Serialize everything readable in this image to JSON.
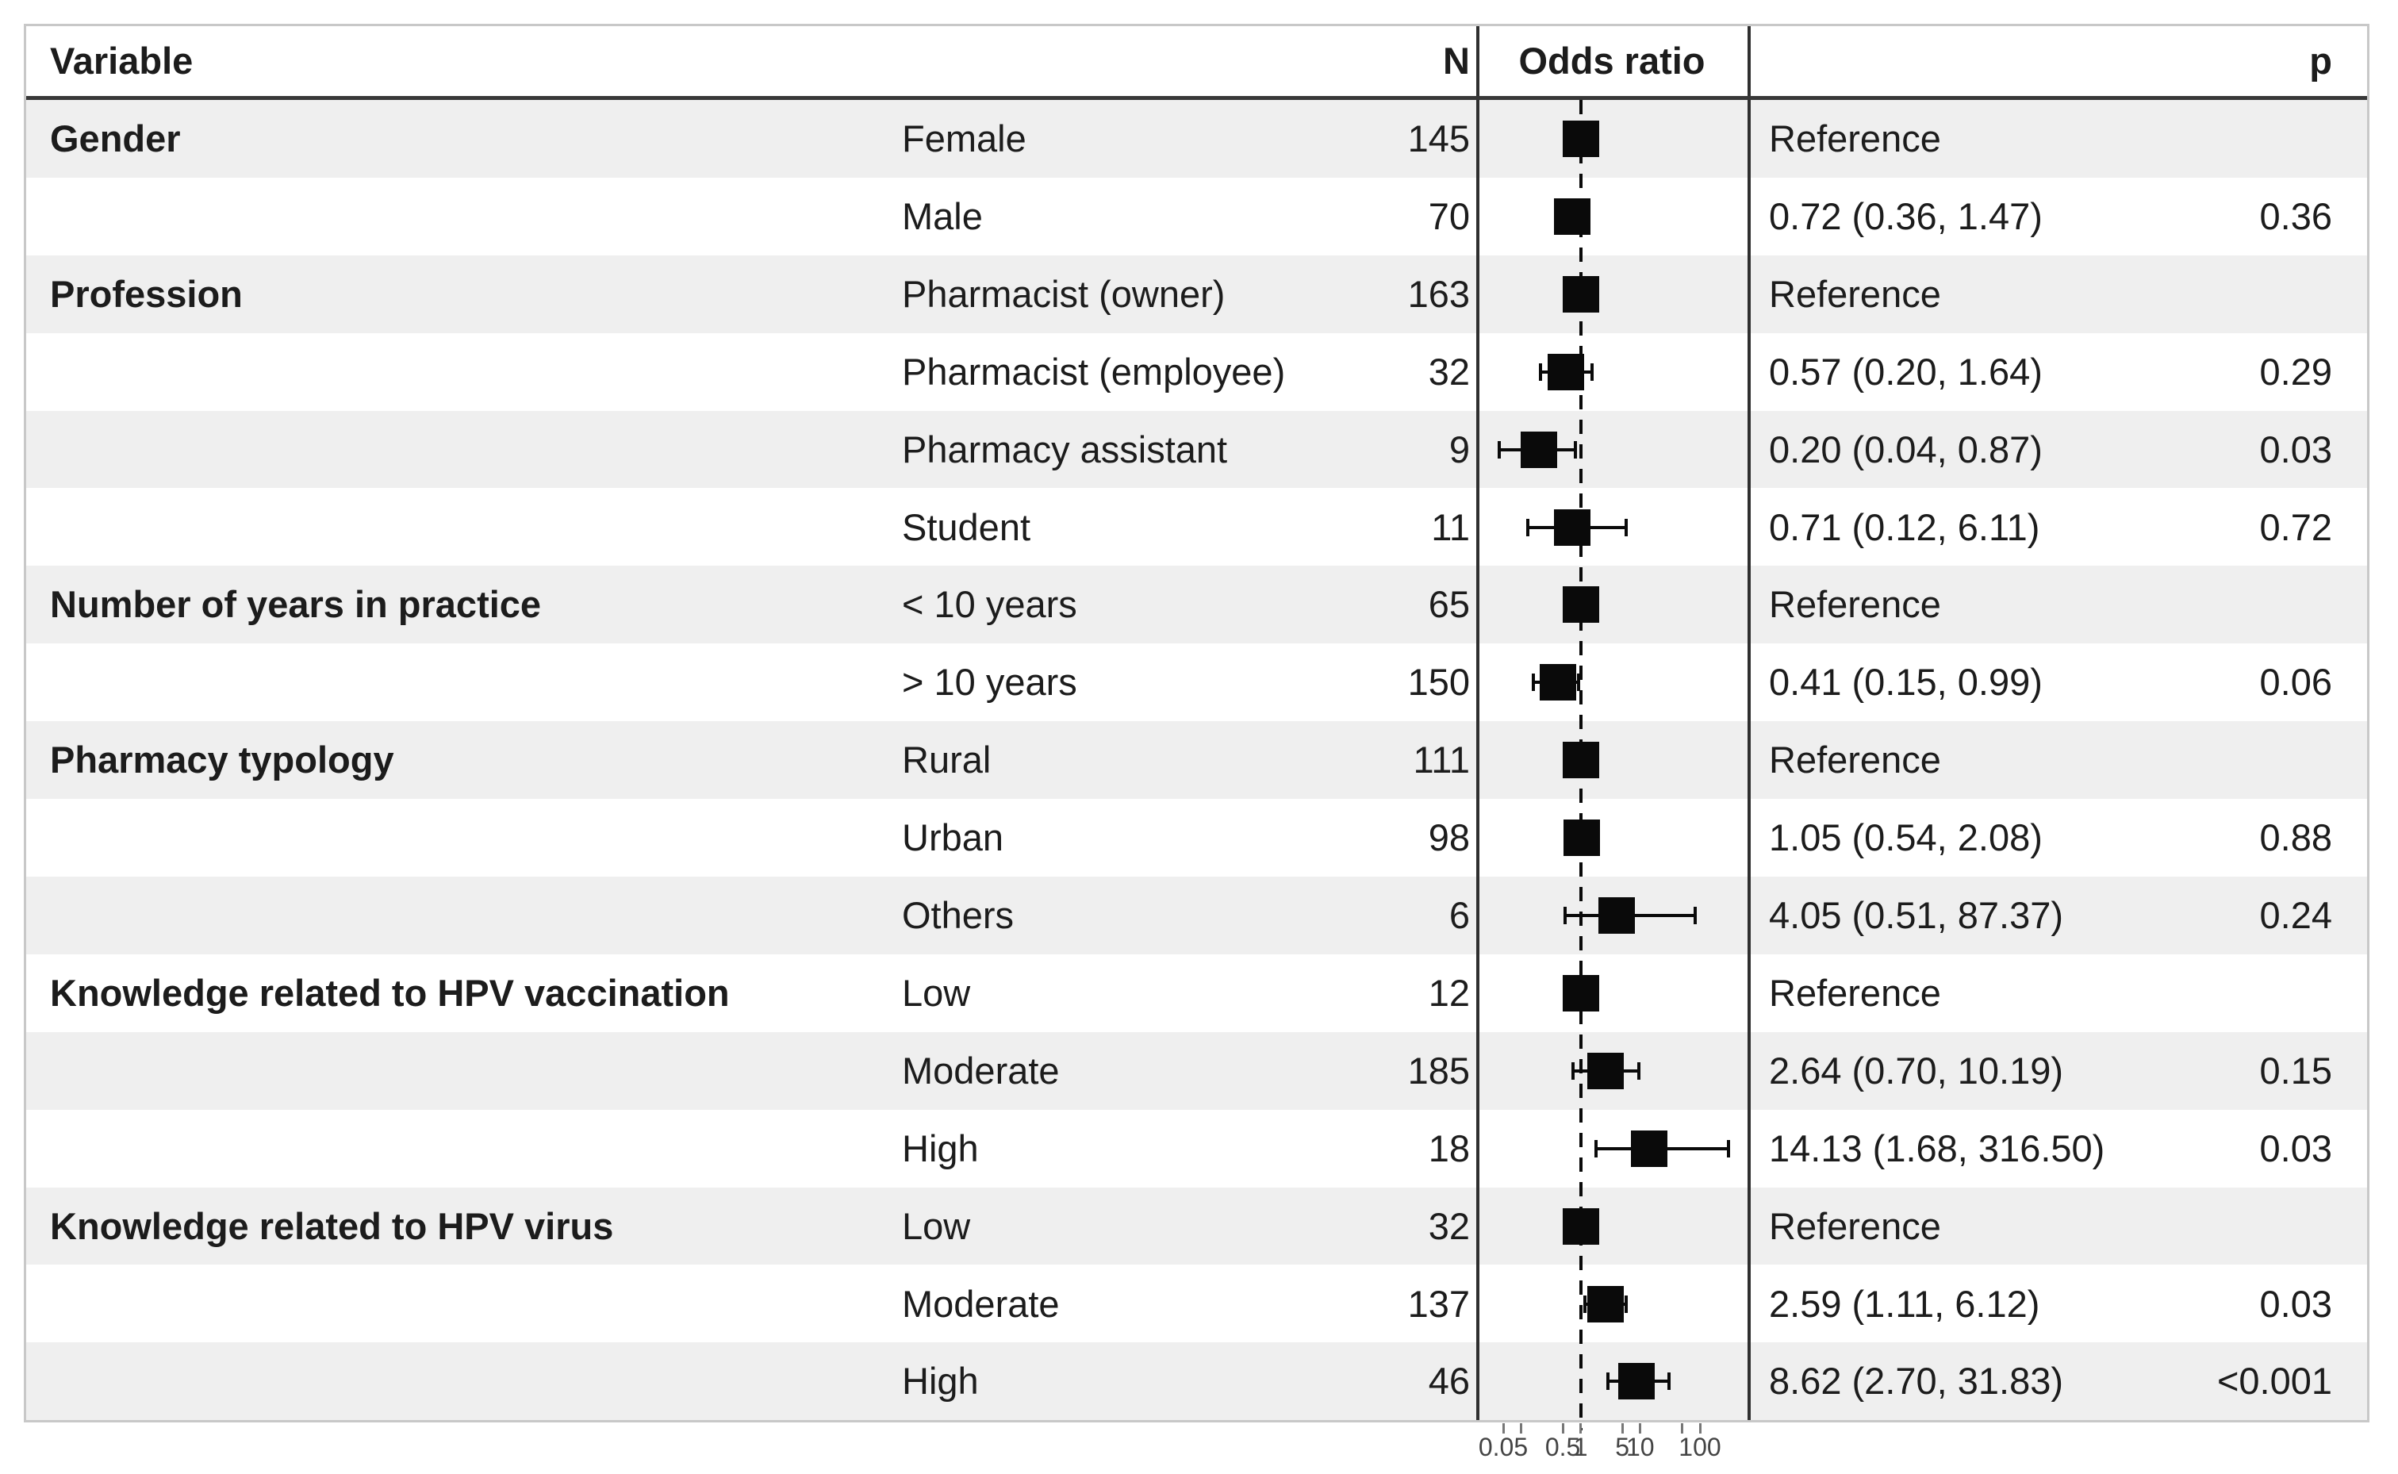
{
  "header": {
    "variable": "Variable",
    "n": "N",
    "odds_ratio": "Odds ratio",
    "p": "p"
  },
  "colors": {
    "row_stripe": "#efefef",
    "marker": "#0a0a0a",
    "frame_border": "#c8c8c8",
    "header_rule": "#383838",
    "plot_border": "#2f2f2f",
    "tick_label": "#444444"
  },
  "chart_data": {
    "type": "forest",
    "x_scale": "log10",
    "reference_line_at": 1,
    "x_ticks": [
      {
        "value": 0.05,
        "label": "0.05"
      },
      {
        "value": 0.1,
        "label": ""
      },
      {
        "value": 0.5,
        "label": "0.5"
      },
      {
        "value": 1,
        "label": "1"
      },
      {
        "value": 5,
        "label": "5"
      },
      {
        "value": 10,
        "label": "10"
      },
      {
        "value": 50,
        "label": ""
      },
      {
        "value": 100,
        "label": "100"
      }
    ],
    "rows": [
      {
        "variable": "Gender",
        "level": "Female",
        "n": 145,
        "or": 1.0,
        "ci_low": null,
        "ci_high": null,
        "estimate_label": "Reference",
        "p_label": ""
      },
      {
        "variable": "",
        "level": "Male",
        "n": 70,
        "or": 0.72,
        "ci_low": 0.36,
        "ci_high": 1.47,
        "estimate_label": "0.72 (0.36, 1.47)",
        "p_label": "0.36"
      },
      {
        "variable": "Profession",
        "level": "Pharmacist (owner)",
        "n": 163,
        "or": 1.0,
        "ci_low": null,
        "ci_high": null,
        "estimate_label": "Reference",
        "p_label": ""
      },
      {
        "variable": "",
        "level": "Pharmacist (employee)",
        "n": 32,
        "or": 0.57,
        "ci_low": 0.2,
        "ci_high": 1.64,
        "estimate_label": "0.57 (0.20, 1.64)",
        "p_label": "0.29"
      },
      {
        "variable": "",
        "level": "Pharmacy assistant",
        "n": 9,
        "or": 0.2,
        "ci_low": 0.04,
        "ci_high": 0.87,
        "estimate_label": "0.20 (0.04, 0.87)",
        "p_label": "0.03"
      },
      {
        "variable": "",
        "level": "Student",
        "n": 11,
        "or": 0.71,
        "ci_low": 0.12,
        "ci_high": 6.11,
        "estimate_label": "0.71 (0.12, 6.11)",
        "p_label": "0.72"
      },
      {
        "variable": "Number of years in practice",
        "level": "< 10 years",
        "n": 65,
        "or": 1.0,
        "ci_low": null,
        "ci_high": null,
        "estimate_label": "Reference",
        "p_label": ""
      },
      {
        "variable": "",
        "level": "> 10 years",
        "n": 150,
        "or": 0.41,
        "ci_low": 0.15,
        "ci_high": 0.99,
        "estimate_label": "0.41 (0.15, 0.99)",
        "p_label": "0.06"
      },
      {
        "variable": "Pharmacy typology",
        "level": "Rural",
        "n": 111,
        "or": 1.0,
        "ci_low": null,
        "ci_high": null,
        "estimate_label": "Reference",
        "p_label": ""
      },
      {
        "variable": "",
        "level": "Urban",
        "n": 98,
        "or": 1.05,
        "ci_low": 0.54,
        "ci_high": 2.08,
        "estimate_label": "1.05 (0.54, 2.08)",
        "p_label": "0.88"
      },
      {
        "variable": "",
        "level": "Others",
        "n": 6,
        "or": 4.05,
        "ci_low": 0.51,
        "ci_high": 87.37,
        "estimate_label": "4.05 (0.51, 87.37)",
        "p_label": "0.24"
      },
      {
        "variable": "Knowledge related to HPV vaccination",
        "level": "Low",
        "n": 12,
        "or": 1.0,
        "ci_low": null,
        "ci_high": null,
        "estimate_label": "Reference",
        "p_label": ""
      },
      {
        "variable": "",
        "level": "Moderate",
        "n": 185,
        "or": 2.64,
        "ci_low": 0.7,
        "ci_high": 10.19,
        "estimate_label": "2.64 (0.70, 10.19)",
        "p_label": "0.15"
      },
      {
        "variable": "",
        "level": "High",
        "n": 18,
        "or": 14.13,
        "ci_low": 1.68,
        "ci_high": 316.5,
        "estimate_label": "14.13 (1.68, 316.50)",
        "p_label": "0.03"
      },
      {
        "variable": "Knowledge related to HPV virus",
        "level": "Low",
        "n": 32,
        "or": 1.0,
        "ci_low": null,
        "ci_high": null,
        "estimate_label": "Reference",
        "p_label": ""
      },
      {
        "variable": "",
        "level": "Moderate",
        "n": 137,
        "or": 2.59,
        "ci_low": 1.11,
        "ci_high": 6.12,
        "estimate_label": "2.59 (1.11, 6.12)",
        "p_label": "0.03"
      },
      {
        "variable": "",
        "level": "High",
        "n": 46,
        "or": 8.62,
        "ci_low": 2.7,
        "ci_high": 31.83,
        "estimate_label": "8.62 (2.70, 31.83)",
        "p_label": "<0.001"
      }
    ]
  }
}
